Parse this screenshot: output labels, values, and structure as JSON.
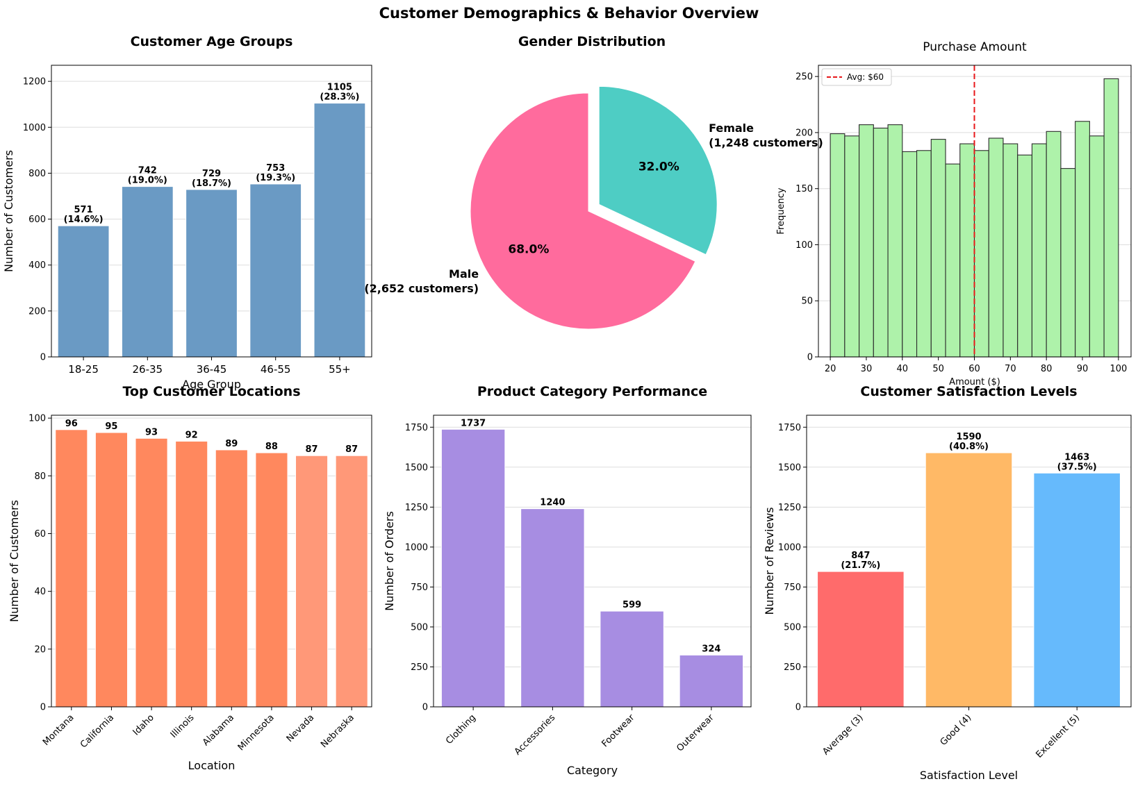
{
  "title": "Customer Demographics & Behavior Overview",
  "chart_data": [
    {
      "id": "age",
      "type": "bar",
      "title": "Customer Age Groups",
      "xlabel": "Age Group",
      "ylabel": "Number of Customers",
      "categories": [
        "18-25",
        "26-35",
        "36-45",
        "46-55",
        "55+"
      ],
      "values": [
        571,
        742,
        729,
        753,
        1105
      ],
      "value_labels": [
        "571\n(14.6%)",
        "742\n(19.0%)",
        "729\n(18.7%)",
        "753\n(19.3%)",
        "1105\n(28.3%)"
      ],
      "ylim": [
        0,
        1270
      ],
      "yticks": [
        0,
        200,
        400,
        600,
        800,
        1000,
        1200
      ],
      "color": "#6a9ac4",
      "grid": true
    },
    {
      "id": "gender",
      "type": "pie",
      "title": "Gender Distribution",
      "slices": [
        {
          "label": "Female\n(1,248 customers)",
          "value": 1248,
          "percent": "32.0%",
          "color": "#4ecdc4",
          "exploded": true
        },
        {
          "label": "Male\n(2,652 customers)",
          "value": 2652,
          "percent": "68.0%",
          "color": "#ff6b9d",
          "exploded": false
        }
      ]
    },
    {
      "id": "purchase",
      "type": "bar",
      "subtype": "histogram",
      "title": "Purchase Amount",
      "xlabel": "Amount ($)",
      "ylabel": "Frequency",
      "bin_start": 20,
      "bin_width": 4,
      "values": [
        199,
        197,
        207,
        204,
        207,
        183,
        184,
        194,
        172,
        190,
        184,
        195,
        190,
        180,
        190,
        201,
        168,
        210,
        197,
        248
      ],
      "xlim": [
        16.7,
        103.5
      ],
      "xticks": [
        20,
        30,
        40,
        50,
        60,
        70,
        80,
        90,
        100
      ],
      "ylim": [
        0,
        260
      ],
      "yticks": [
        0,
        50,
        100,
        150,
        200,
        250
      ],
      "color": "#aef2aa",
      "avg_line": {
        "value": 60,
        "label": "Avg: $60",
        "color": "#e8171a"
      },
      "legend_position": "top-left",
      "grid": true
    },
    {
      "id": "locations",
      "type": "bar",
      "title": "Top Customer Locations",
      "xlabel": "Location",
      "ylabel": "Number of Customers",
      "categories": [
        "Montana",
        "California",
        "Idaho",
        "Illinois",
        "Alabama",
        "Minnesota",
        "Nevada",
        "Nebraska"
      ],
      "values": [
        96,
        95,
        93,
        92,
        89,
        88,
        87,
        87
      ],
      "value_labels": [
        "96",
        "95",
        "93",
        "92",
        "89",
        "88",
        "87",
        "87"
      ],
      "colors": [
        "#ff885e",
        "#ff885e",
        "#ff885e",
        "#ff885e",
        "#ff885e",
        "#ff885e",
        "#ff9878",
        "#ff9878"
      ],
      "ylim": [
        0,
        101
      ],
      "yticks": [
        0,
        20,
        40,
        60,
        80,
        100
      ],
      "rotate_labels": true,
      "grid": true
    },
    {
      "id": "category",
      "type": "bar",
      "title": "Product Category Performance",
      "xlabel": "Category",
      "ylabel": "Number of Orders",
      "categories": [
        "Clothing",
        "Accessories",
        "Footwear",
        "Outerwear"
      ],
      "values": [
        1737,
        1240,
        599,
        324
      ],
      "value_labels": [
        "1737",
        "1240",
        "599",
        "324"
      ],
      "color": "#a78de2",
      "ylim": [
        0,
        1825
      ],
      "yticks": [
        0,
        250,
        500,
        750,
        1000,
        1250,
        1500,
        1750
      ],
      "rotate_labels": true,
      "grid": true
    },
    {
      "id": "satisfaction",
      "type": "bar",
      "title": "Customer Satisfaction Levels",
      "xlabel": "Satisfaction Level",
      "ylabel": "Number of Reviews",
      "categories": [
        "Average (3)",
        "Good (4)",
        "Excellent (5)"
      ],
      "values": [
        847,
        1590,
        1463
      ],
      "value_labels": [
        "847\n(21.7%)",
        "1590\n(40.8%)",
        "1463\n(37.5%)"
      ],
      "colors": [
        "#ff6b6b",
        "#ffb966",
        "#66bafc"
      ],
      "ylim": [
        0,
        1825
      ],
      "yticks": [
        0,
        250,
        500,
        750,
        1000,
        1250,
        1500,
        1750
      ],
      "rotate_labels": true,
      "grid": true
    }
  ]
}
